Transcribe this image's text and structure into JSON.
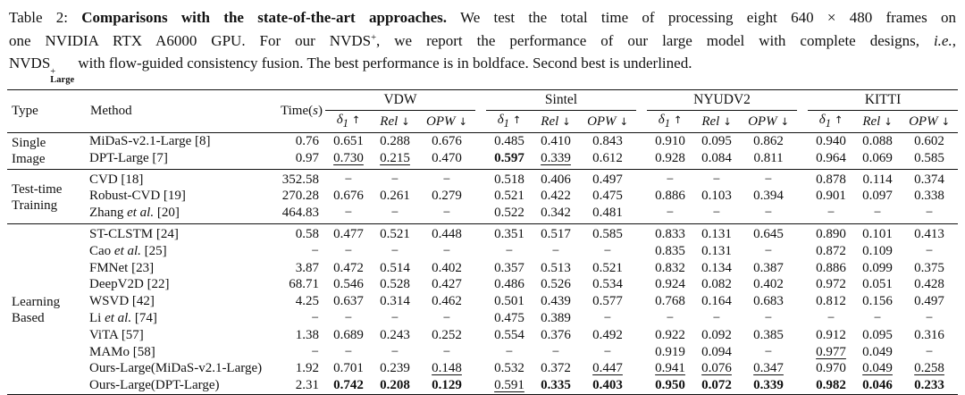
{
  "caption": {
    "line1": {
      "prefix": "Table 2: ",
      "bold": "Comparisons with the state-of-the-art approaches.",
      "rest": " We test the total time of processing eight 640 × 480 frames on"
    },
    "line2": {
      "start": "one NVIDIA RTX A6000 GPU. For our NVDS",
      "sup": "+",
      "mid": ", we report the performance of our large model with complete designs, ",
      "italic": "i.e.",
      "end": ","
    },
    "line3": {
      "start": "NVDS",
      "sup": "+",
      "sub": "Large",
      "rest": " with flow-guided consistency fusion. The best performance is in boldface. Second best is underlined."
    }
  },
  "table": {
    "col_headers": {
      "type": "Type",
      "method": "Method",
      "time_pre": "Time(",
      "time_s": "s",
      "time_post": ")"
    },
    "dataset_groups": [
      "VDW",
      "Sintel",
      "NYUDV2",
      "KITTI"
    ],
    "metrics": [
      {
        "name": "δ",
        "sub": "1",
        "arrow": "↑"
      },
      {
        "name": "Rel",
        "sub": "",
        "arrow": "↓"
      },
      {
        "name": "OPW",
        "sub": "",
        "arrow": "↓"
      }
    ],
    "row_groups": [
      {
        "type_lines": [
          "Single",
          "Image"
        ],
        "rows": [
          {
            "method": [
              [
                "MiDaS-v2.1-Large [8]"
              ]
            ],
            "time": "0.76",
            "vals": [
              "0.651",
              "0.288",
              "0.676",
              "0.485",
              "0.410",
              "0.843",
              "0.910",
              "0.095",
              "0.862",
              "0.940",
              "0.088",
              "0.602"
            ],
            "fmts": [
              "",
              "",
              "",
              "",
              "",
              "",
              "",
              "",
              "",
              "",
              "",
              ""
            ]
          },
          {
            "method": [
              [
                "DPT-Large [7]"
              ]
            ],
            "time": "0.97",
            "vals": [
              "0.730",
              "0.215",
              "0.470",
              "0.597",
              "0.339",
              "0.612",
              "0.928",
              "0.084",
              "0.811",
              "0.964",
              "0.069",
              "0.585"
            ],
            "fmts": [
              "u",
              "u",
              "",
              "b",
              "u",
              "",
              "",
              "",
              "",
              "",
              "",
              ""
            ]
          }
        ]
      },
      {
        "type_lines": [
          "Test-time",
          "Training"
        ],
        "rows": [
          {
            "method": [
              [
                "CVD [18]"
              ]
            ],
            "time": "352.58",
            "vals": [
              "−",
              "−",
              "−",
              "0.518",
              "0.406",
              "0.497",
              "−",
              "−",
              "−",
              "0.878",
              "0.114",
              "0.374"
            ],
            "fmts": [
              "",
              "",
              "",
              "",
              "",
              "",
              "",
              "",
              "",
              "",
              "",
              ""
            ]
          },
          {
            "method": [
              [
                "Robust-CVD [19]"
              ]
            ],
            "time": "270.28",
            "vals": [
              "0.676",
              "0.261",
              "0.279",
              "0.521",
              "0.422",
              "0.475",
              "0.886",
              "0.103",
              "0.394",
              "0.901",
              "0.097",
              "0.338"
            ],
            "fmts": [
              "",
              "",
              "",
              "",
              "",
              "",
              "",
              "",
              "",
              "",
              "",
              ""
            ]
          },
          {
            "method": [
              [
                "Zhang "
              ],
              [
                "et al.",
                "i"
              ],
              [
                " [20]"
              ]
            ],
            "time": "464.83",
            "vals": [
              "−",
              "−",
              "−",
              "0.522",
              "0.342",
              "0.481",
              "−",
              "−",
              "−",
              "−",
              "−",
              "−"
            ],
            "fmts": [
              "",
              "",
              "",
              "",
              "",
              "",
              "",
              "",
              "",
              "",
              "",
              ""
            ]
          }
        ]
      },
      {
        "type_lines": [
          "Learning",
          "Based"
        ],
        "rows": [
          {
            "method": [
              [
                "ST-CLSTM [24]"
              ]
            ],
            "time": "0.58",
            "vals": [
              "0.477",
              "0.521",
              "0.448",
              "0.351",
              "0.517",
              "0.585",
              "0.833",
              "0.131",
              "0.645",
              "0.890",
              "0.101",
              "0.413"
            ],
            "fmts": [
              "",
              "",
              "",
              "",
              "",
              "",
              "",
              "",
              "",
              "",
              "",
              ""
            ]
          },
          {
            "method": [
              [
                "Cao "
              ],
              [
                "et al.",
                "i"
              ],
              [
                " [25]"
              ]
            ],
            "time": "−",
            "vals": [
              "−",
              "−",
              "−",
              "−",
              "−",
              "−",
              "0.835",
              "0.131",
              "−",
              "0.872",
              "0.109",
              "−"
            ],
            "fmts": [
              "",
              "",
              "",
              "",
              "",
              "",
              "",
              "",
              "",
              "",
              "",
              ""
            ]
          },
          {
            "method": [
              [
                "FMNet [23]"
              ]
            ],
            "time": "3.87",
            "vals": [
              "0.472",
              "0.514",
              "0.402",
              "0.357",
              "0.513",
              "0.521",
              "0.832",
              "0.134",
              "0.387",
              "0.886",
              "0.099",
              "0.375"
            ],
            "fmts": [
              "",
              "",
              "",
              "",
              "",
              "",
              "",
              "",
              "",
              "",
              "",
              ""
            ]
          },
          {
            "method": [
              [
                "DeepV2D [22]"
              ]
            ],
            "time": "68.71",
            "vals": [
              "0.546",
              "0.528",
              "0.427",
              "0.486",
              "0.526",
              "0.534",
              "0.924",
              "0.082",
              "0.402",
              "0.972",
              "0.051",
              "0.428"
            ],
            "fmts": [
              "",
              "",
              "",
              "",
              "",
              "",
              "",
              "",
              "",
              "",
              "",
              ""
            ]
          },
          {
            "method": [
              [
                "WSVD [42]"
              ]
            ],
            "time": "4.25",
            "vals": [
              "0.637",
              "0.314",
              "0.462",
              "0.501",
              "0.439",
              "0.577",
              "0.768",
              "0.164",
              "0.683",
              "0.812",
              "0.156",
              "0.497"
            ],
            "fmts": [
              "",
              "",
              "",
              "",
              "",
              "",
              "",
              "",
              "",
              "",
              "",
              ""
            ]
          },
          {
            "method": [
              [
                "Li "
              ],
              [
                "et al.",
                "i"
              ],
              [
                " [74]"
              ]
            ],
            "time": "−",
            "vals": [
              "−",
              "−",
              "−",
              "0.475",
              "0.389",
              "−",
              "−",
              "−",
              "−",
              "−",
              "−",
              "−"
            ],
            "fmts": [
              "",
              "",
              "",
              "",
              "",
              "",
              "",
              "",
              "",
              "",
              "",
              ""
            ]
          },
          {
            "method": [
              [
                "ViTA [57]"
              ]
            ],
            "time": "1.38",
            "vals": [
              "0.689",
              "0.243",
              "0.252",
              "0.554",
              "0.376",
              "0.492",
              "0.922",
              "0.092",
              "0.385",
              "0.912",
              "0.095",
              "0.316"
            ],
            "fmts": [
              "",
              "",
              "",
              "",
              "",
              "",
              "",
              "",
              "",
              "",
              "",
              ""
            ]
          },
          {
            "method": [
              [
                "MAMo [58]"
              ]
            ],
            "time": "−",
            "vals": [
              "−",
              "−",
              "−",
              "−",
              "−",
              "−",
              "0.919",
              "0.094",
              "−",
              "0.977",
              "0.049",
              "−"
            ],
            "fmts": [
              "",
              "",
              "",
              "",
              "",
              "",
              "",
              "",
              "",
              "u",
              "",
              ""
            ]
          },
          {
            "method": [
              [
                "Ours-Large(MiDaS-v2.1-Large)"
              ]
            ],
            "time": "1.92",
            "vals": [
              "0.701",
              "0.239",
              "0.148",
              "0.532",
              "0.372",
              "0.447",
              "0.941",
              "0.076",
              "0.347",
              "0.970",
              "0.049",
              "0.258"
            ],
            "fmts": [
              "",
              "",
              "u",
              "",
              "",
              "u",
              "u",
              "u",
              "u",
              "",
              "u",
              "u"
            ]
          },
          {
            "method": [
              [
                "Ours-Large(DPT-Large)"
              ]
            ],
            "time": "2.31",
            "vals": [
              "0.742",
              "0.208",
              "0.129",
              "0.591",
              "0.335",
              "0.403",
              "0.950",
              "0.072",
              "0.339",
              "0.982",
              "0.046",
              "0.233"
            ],
            "fmts": [
              "b",
              "b",
              "b",
              "u",
              "b",
              "b",
              "b",
              "b",
              "b",
              "b",
              "b",
              "b"
            ]
          }
        ]
      }
    ]
  }
}
